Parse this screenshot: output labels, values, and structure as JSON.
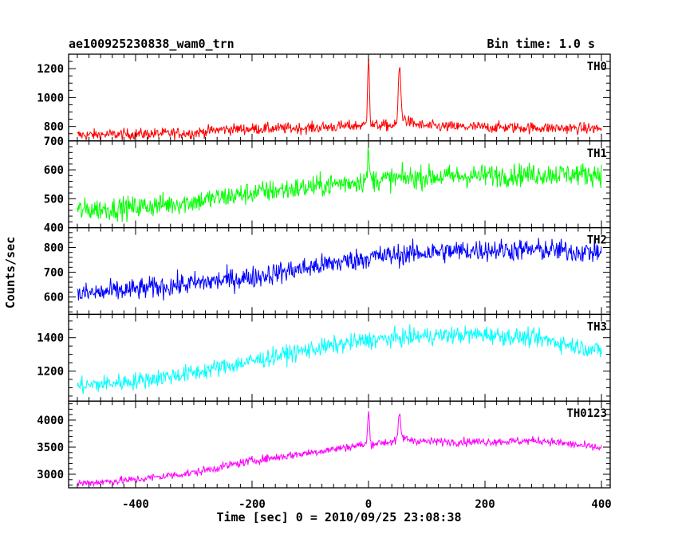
{
  "chart_data": {
    "type": "line",
    "title_left": "ae100925230838_wam0_trn",
    "title_right": "Bin time: 1.0 s",
    "xlabel": "Time [sec] 0 = 2010/09/25 23:08:38",
    "ylabel": "Counts/sec",
    "xlim": [
      -515,
      415
    ],
    "xticks": [
      -400,
      -200,
      0,
      200,
      400
    ],
    "x_major_step": 200,
    "x_minor_step": 20,
    "x_range": [
      -500,
      400
    ],
    "bin_time": 1.0,
    "grid": false,
    "panels": [
      {
        "name": "TH0",
        "color": "#ff0000",
        "ylim": [
          700,
          1300
        ],
        "yticks": [
          800,
          1000,
          1200
        ],
        "y_major_step": 200,
        "y_minor_step": 50,
        "show_last_tick": false,
        "baseline": [
          [
            -500,
            740
          ],
          [
            -300,
            755
          ],
          [
            -250,
            780
          ],
          [
            -100,
            790
          ],
          [
            0,
            810
          ],
          [
            100,
            800
          ],
          [
            300,
            790
          ],
          [
            400,
            785
          ]
        ],
        "noise": 28,
        "peaks": [
          {
            "t": 0,
            "height": 500,
            "width": 1.5
          },
          {
            "t": 53,
            "height": 380,
            "width": 2
          }
        ],
        "tail": [
          {
            "t": 53,
            "height": 90,
            "decay": 15
          }
        ]
      },
      {
        "name": "TH1",
        "color": "#00ff00",
        "ylim": [
          400,
          700
        ],
        "yticks": [
          400,
          500,
          600,
          700
        ],
        "y_major_step": 100,
        "y_minor_step": 20,
        "show_last_tick": true,
        "baseline": [
          [
            -500,
            460
          ],
          [
            -400,
            470
          ],
          [
            -300,
            490
          ],
          [
            -200,
            520
          ],
          [
            -100,
            540
          ],
          [
            0,
            565
          ],
          [
            100,
            575
          ],
          [
            200,
            580
          ],
          [
            300,
            585
          ],
          [
            400,
            585
          ]
        ],
        "noise": 28,
        "peaks": [
          {
            "t": 0,
            "height": 90,
            "width": 1.5
          }
        ],
        "tail": []
      },
      {
        "name": "TH2",
        "color": "#0000ff",
        "ylim": [
          530,
          880
        ],
        "yticks": [
          600,
          700,
          800
        ],
        "y_major_step": 100,
        "y_minor_step": 20,
        "show_last_tick": false,
        "baseline": [
          [
            -500,
            610
          ],
          [
            -400,
            630
          ],
          [
            -300,
            655
          ],
          [
            -200,
            680
          ],
          [
            -100,
            720
          ],
          [
            0,
            760
          ],
          [
            100,
            780
          ],
          [
            200,
            790
          ],
          [
            300,
            790
          ],
          [
            400,
            780
          ]
        ],
        "noise": 32,
        "peaks": [],
        "tail": []
      },
      {
        "name": "TH3",
        "color": "#00ffff",
        "ylim": [
          1020,
          1540
        ],
        "yticks": [
          1200,
          1400
        ],
        "y_major_step": 200,
        "y_minor_step": 50,
        "show_last_tick": false,
        "baseline": [
          [
            -500,
            1110
          ],
          [
            -400,
            1140
          ],
          [
            -300,
            1190
          ],
          [
            -200,
            1260
          ],
          [
            -100,
            1330
          ],
          [
            0,
            1385
          ],
          [
            100,
            1410
          ],
          [
            200,
            1420
          ],
          [
            300,
            1390
          ],
          [
            400,
            1320
          ]
        ],
        "noise": 38,
        "peaks": [],
        "tail": []
      },
      {
        "name": "TH0123",
        "color": "#ff00ff",
        "ylim": [
          2750,
          4350
        ],
        "yticks": [
          3000,
          3500,
          4000
        ],
        "y_major_step": 500,
        "y_minor_step": 100,
        "show_last_tick": false,
        "baseline": [
          [
            -500,
            2830
          ],
          [
            -400,
            2900
          ],
          [
            -300,
            3030
          ],
          [
            -200,
            3250
          ],
          [
            -100,
            3400
          ],
          [
            0,
            3560
          ],
          [
            60,
            3620
          ],
          [
            100,
            3600
          ],
          [
            200,
            3600
          ],
          [
            300,
            3620
          ],
          [
            400,
            3480
          ]
        ],
        "noise": 55,
        "peaks": [
          {
            "t": 0,
            "height": 600,
            "width": 1.5
          },
          {
            "t": 53,
            "height": 450,
            "width": 2
          }
        ],
        "tail": [
          {
            "t": 53,
            "height": 80,
            "decay": 15
          }
        ]
      }
    ]
  }
}
